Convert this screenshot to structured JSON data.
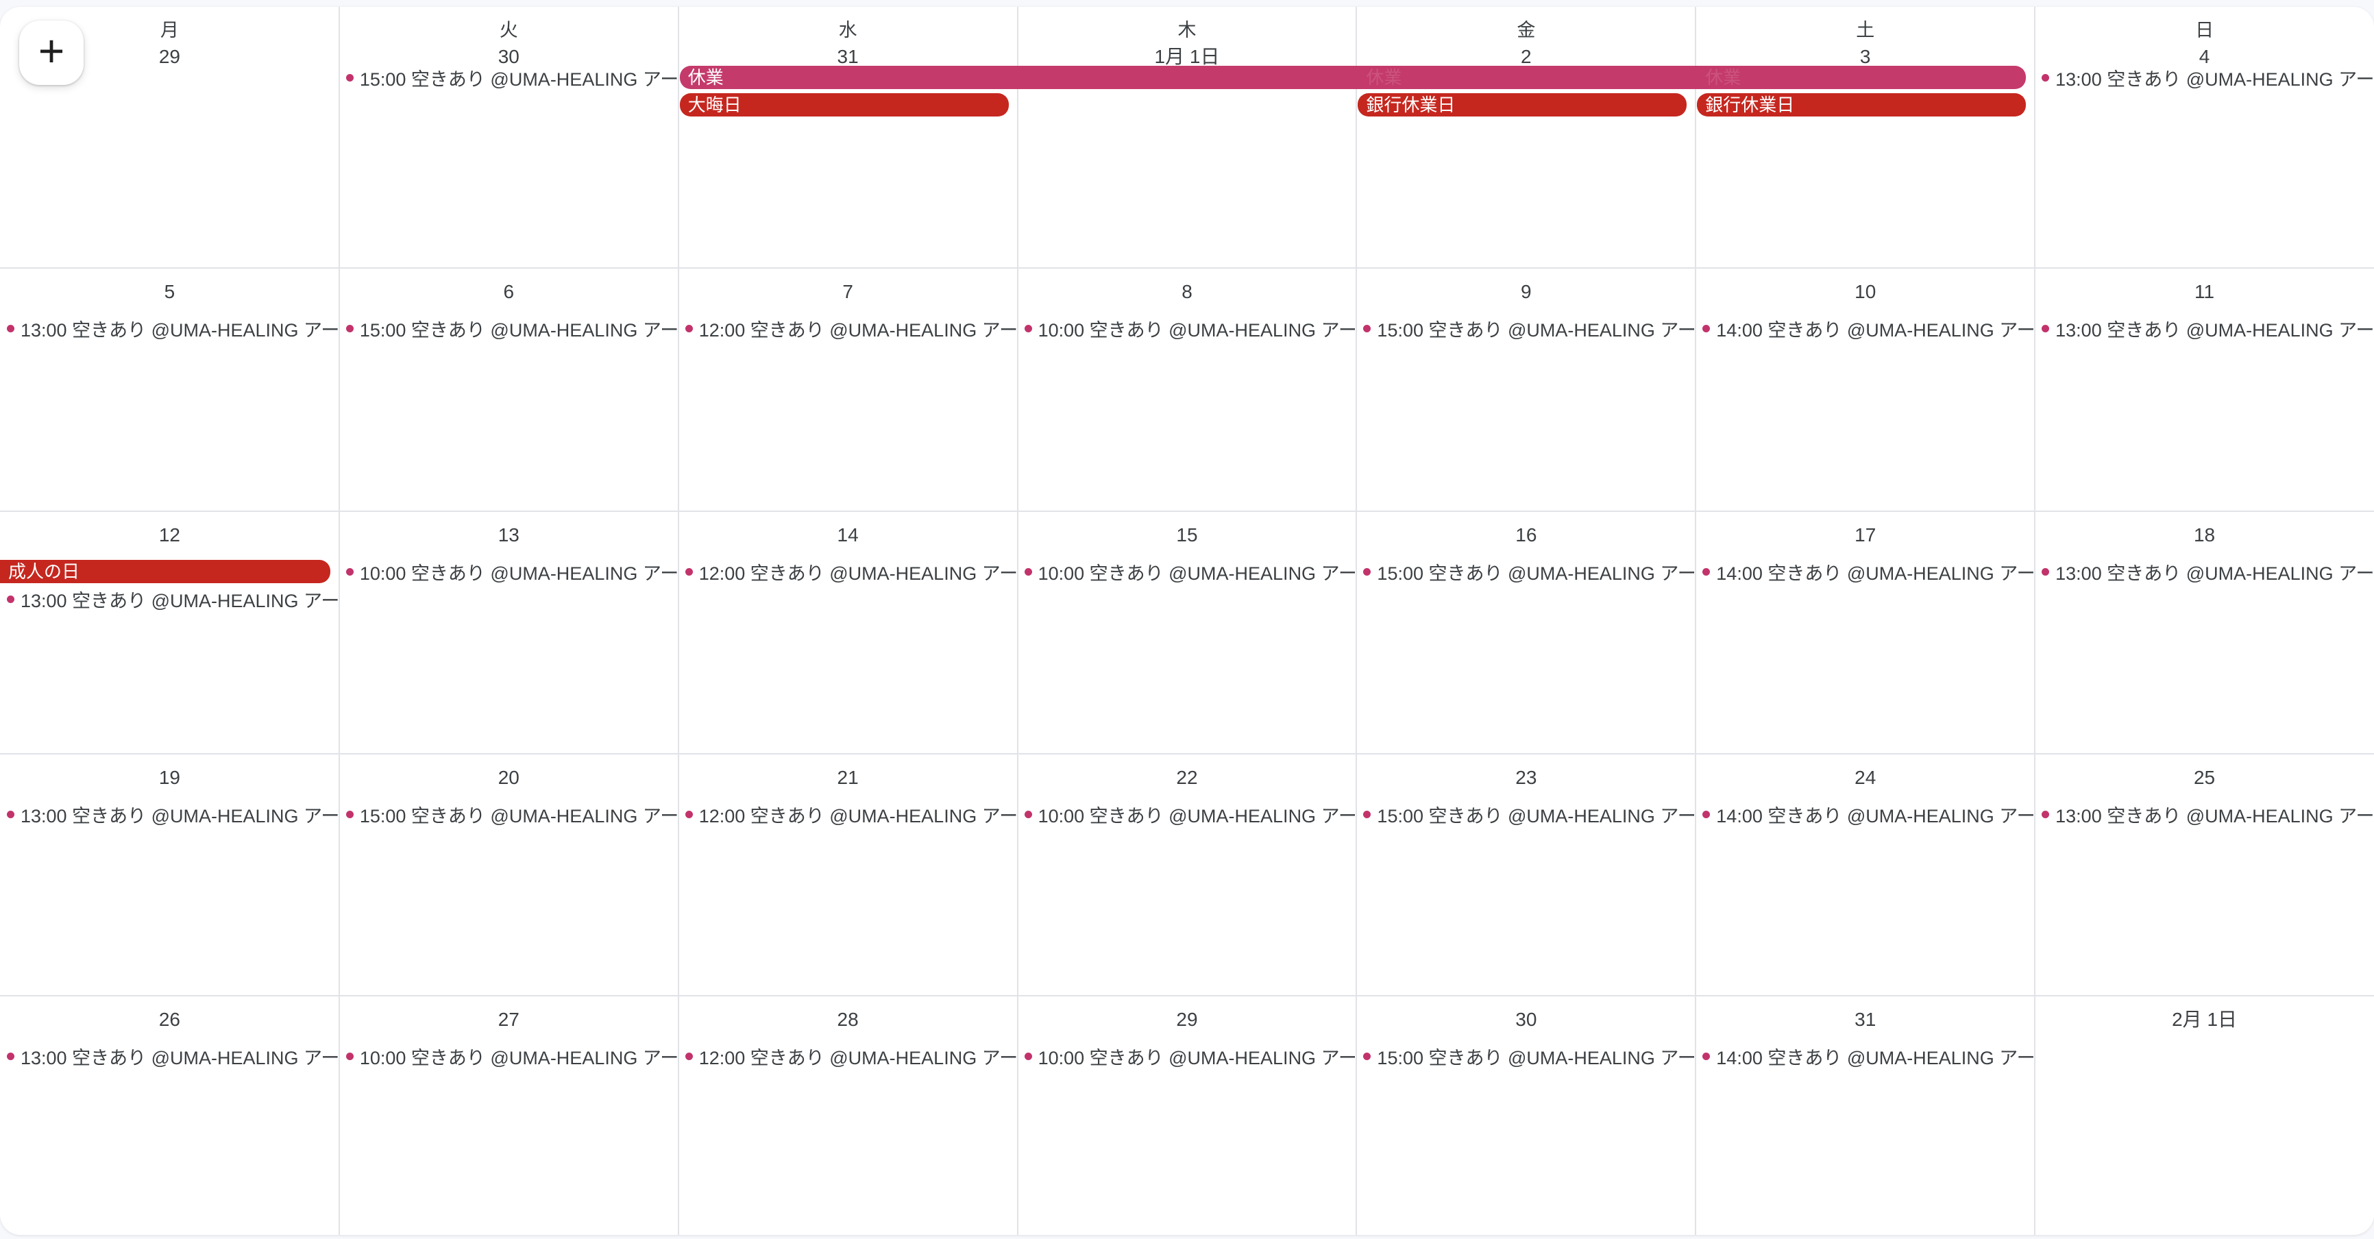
{
  "page": {
    "background_color": "#f7f8fc",
    "sheet_color": "#ffffff",
    "gridline_color": "#e1e3e8",
    "text_color": "#3c4043",
    "plus_icon_color": "#1f1f1f"
  },
  "colors": {
    "event_dot": "#c2336b",
    "banner_pink": "#c43a6b",
    "banner_red": "#c5271f",
    "banner_text": "#ffffff"
  },
  "add_button": {
    "label": "+"
  },
  "weeks": [
    {
      "cells": [
        {
          "day": "月",
          "date": "29",
          "events": []
        },
        {
          "day": "火",
          "date": "30",
          "events": [
            {
              "time": "15:00",
              "title": "空きあり @UMA-HEALING アーユルヴェ"
            }
          ]
        },
        {
          "day": "水",
          "date": "31",
          "events": []
        },
        {
          "day": "木",
          "date": "1月 1日",
          "events": []
        },
        {
          "day": "金",
          "date": "2",
          "events": []
        },
        {
          "day": "土",
          "date": "3",
          "events": []
        },
        {
          "day": "日",
          "date": "4",
          "events": [
            {
              "time": "13:00",
              "title": "空きあり @UMA-HEALING アーユルヴェ"
            }
          ]
        }
      ]
    },
    {
      "cells": [
        {
          "date": "5",
          "events": [
            {
              "time": "13:00",
              "title": "空きあり @UMA-HEALING アーユルヴェ"
            }
          ]
        },
        {
          "date": "6",
          "events": [
            {
              "time": "15:00",
              "title": "空きあり @UMA-HEALING アーユルヴェ"
            }
          ]
        },
        {
          "date": "7",
          "events": [
            {
              "time": "12:00",
              "title": "空きあり @UMA-HEALING アーユルヴェ"
            }
          ]
        },
        {
          "date": "8",
          "events": [
            {
              "time": "10:00",
              "title": "空きあり @UMA-HEALING アーユルヴェ"
            }
          ]
        },
        {
          "date": "9",
          "events": [
            {
              "time": "15:00",
              "title": "空きあり @UMA-HEALING アーユルヴェ"
            }
          ]
        },
        {
          "date": "10",
          "events": [
            {
              "time": "14:00",
              "title": "空きあり @UMA-HEALING アーユルヴェ"
            }
          ]
        },
        {
          "date": "11",
          "events": [
            {
              "time": "13:00",
              "title": "空きあり @UMA-HEALING アーユルヴェ"
            }
          ]
        }
      ]
    },
    {
      "cells": [
        {
          "date": "12",
          "events": [
            {
              "time": "13:00",
              "title": "空きあり @UMA-HEALING アーユルヴェ"
            }
          ]
        },
        {
          "date": "13",
          "events": [
            {
              "time": "10:00",
              "title": "空きあり @UMA-HEALING アーユルヴェ"
            }
          ]
        },
        {
          "date": "14",
          "events": [
            {
              "time": "12:00",
              "title": "空きあり @UMA-HEALING アーユルヴェ"
            }
          ]
        },
        {
          "date": "15",
          "events": [
            {
              "time": "10:00",
              "title": "空きあり @UMA-HEALING アーユルヴェ"
            }
          ]
        },
        {
          "date": "16",
          "events": [
            {
              "time": "15:00",
              "title": "空きあり @UMA-HEALING アーユルヴェ"
            }
          ]
        },
        {
          "date": "17",
          "events": [
            {
              "time": "14:00",
              "title": "空きあり @UMA-HEALING アーユルヴェ"
            }
          ]
        },
        {
          "date": "18",
          "events": [
            {
              "time": "13:00",
              "title": "空きあり @UMA-HEALING アーユルヴェ"
            }
          ]
        }
      ]
    },
    {
      "cells": [
        {
          "date": "19",
          "events": [
            {
              "time": "13:00",
              "title": "空きあり @UMA-HEALING アーユルヴェ"
            }
          ]
        },
        {
          "date": "20",
          "events": [
            {
              "time": "15:00",
              "title": "空きあり @UMA-HEALING アーユルヴェ"
            }
          ]
        },
        {
          "date": "21",
          "events": [
            {
              "time": "12:00",
              "title": "空きあり @UMA-HEALING アーユルヴェ"
            }
          ]
        },
        {
          "date": "22",
          "events": [
            {
              "time": "10:00",
              "title": "空きあり @UMA-HEALING アーユルヴェ"
            }
          ]
        },
        {
          "date": "23",
          "events": [
            {
              "time": "15:00",
              "title": "空きあり @UMA-HEALING アーユルヴェ"
            }
          ]
        },
        {
          "date": "24",
          "events": [
            {
              "time": "14:00",
              "title": "空きあり @UMA-HEALING アーユルヴェ"
            }
          ]
        },
        {
          "date": "25",
          "events": [
            {
              "time": "13:00",
              "title": "空きあり @UMA-HEALING アーユルヴェ"
            }
          ]
        }
      ]
    },
    {
      "cells": [
        {
          "date": "26",
          "events": [
            {
              "time": "13:00",
              "title": "空きあり @UMA-HEALING アーユルヴェ"
            }
          ]
        },
        {
          "date": "27",
          "events": [
            {
              "time": "10:00",
              "title": "空きあり @UMA-HEALING アーユルヴェ"
            }
          ]
        },
        {
          "date": "28",
          "events": [
            {
              "time": "12:00",
              "title": "空きあり @UMA-HEALING アーユルヴェ"
            }
          ]
        },
        {
          "date": "29",
          "events": [
            {
              "time": "10:00",
              "title": "空きあり @UMA-HEALING アーユルヴェ"
            }
          ]
        },
        {
          "date": "30",
          "events": [
            {
              "time": "15:00",
              "title": "空きあり @UMA-HEALING アーユルヴェ"
            }
          ]
        },
        {
          "date": "31",
          "events": [
            {
              "time": "14:00",
              "title": "空きあり @UMA-HEALING アーユルヴェ"
            }
          ]
        },
        {
          "date": "2月 1日",
          "events": []
        }
      ]
    }
  ],
  "banners": [
    {
      "label": "休業",
      "week": 0,
      "col_start": 2,
      "col_end": 5,
      "slot": 0,
      "color": "banner_pink",
      "rounded_left": true,
      "rounded_right": true,
      "faint_repeat_cols": [
        4,
        5
      ]
    },
    {
      "label": "大晦日",
      "week": 0,
      "col_start": 2,
      "col_end": 2,
      "slot": 1,
      "color": "banner_red",
      "rounded_left": true,
      "rounded_right": true
    },
    {
      "label": "銀行休業日",
      "week": 0,
      "col_start": 4,
      "col_end": 4,
      "slot": 1,
      "color": "banner_red",
      "rounded_left": true,
      "rounded_right": true
    },
    {
      "label": "銀行休業日",
      "week": 0,
      "col_start": 5,
      "col_end": 5,
      "slot": 1,
      "color": "banner_red",
      "rounded_left": true,
      "rounded_right": true
    },
    {
      "label": "成人の日",
      "week": 2,
      "col_start": 0,
      "col_end": 0,
      "slot": 0,
      "color": "banner_red",
      "rounded_left": false,
      "rounded_right": true
    }
  ]
}
